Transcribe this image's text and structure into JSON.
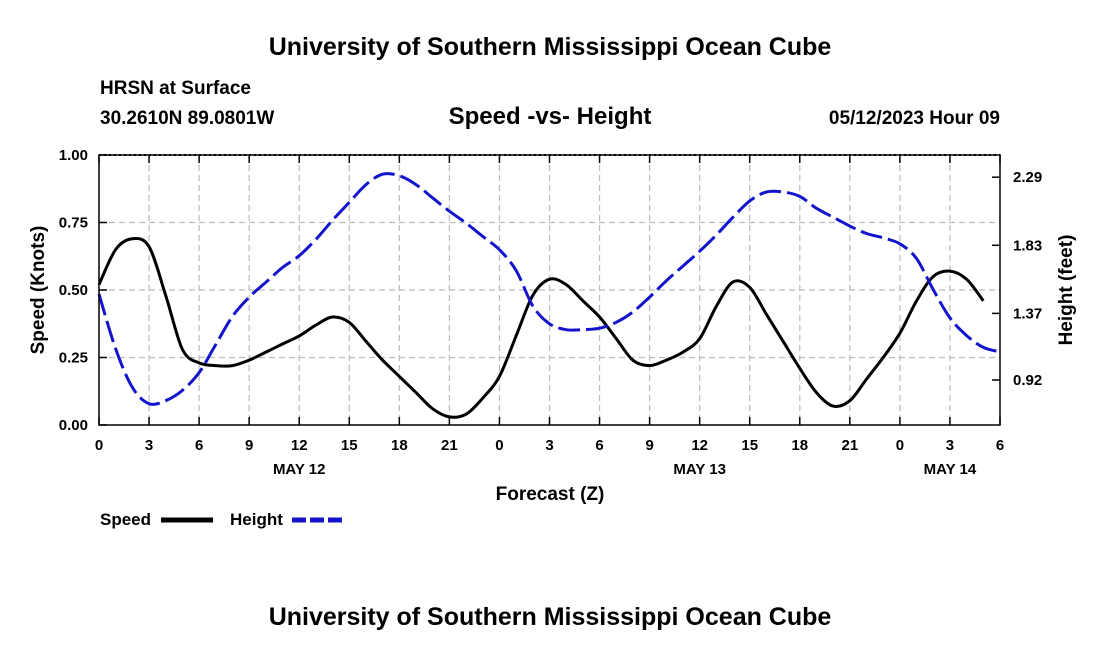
{
  "page": {
    "title_top": "University of Southern Mississippi Ocean Cube",
    "title_bottom": "University of Southern Mississippi Ocean Cube",
    "station": "HRSN at Surface",
    "coords": "30.2610N  89.0801W",
    "subtitle": "Speed -vs- Height",
    "date": "05/12/2023 Hour 09"
  },
  "chart_data": {
    "type": "line",
    "title": "Speed -vs- Height",
    "xlabel": "Forecast (Z)",
    "ylabel": "Speed (Knots)",
    "y2label": "Height (feet)",
    "x_range": [
      0,
      54
    ],
    "x_unit": "hours since 05/12 00Z",
    "ylim": [
      0,
      1
    ],
    "y2lim": [
      0.616,
      2.44
    ],
    "yticks": [
      0,
      0.25,
      0.5,
      0.75,
      1.0
    ],
    "ytick_labels": [
      "0.00",
      "0.25",
      "0.50",
      "0.75",
      "1.00"
    ],
    "y2ticks": [
      0.92,
      1.37,
      1.83,
      2.29
    ],
    "y2tick_labels": [
      "0.92",
      "1.37",
      "1.83",
      "2.29"
    ],
    "xticks": [
      0,
      3,
      6,
      9,
      12,
      15,
      18,
      21,
      24,
      27,
      30,
      33,
      36,
      39,
      42,
      45,
      48,
      51,
      54
    ],
    "xtick_labels": [
      "0",
      "3",
      "6",
      "9",
      "12",
      "15",
      "18",
      "21",
      "0",
      "3",
      "6",
      "9",
      "12",
      "15",
      "18",
      "21",
      "0",
      "3",
      "6"
    ],
    "date_labels": [
      {
        "x": 12,
        "label": "MAY 12"
      },
      {
        "x": 36,
        "label": "MAY 13"
      },
      {
        "x": 51,
        "label": "MAY 14"
      }
    ],
    "grid": true,
    "legend": "bottom-left",
    "series": [
      {
        "name": "Speed",
        "axis": "left",
        "color": "#000000",
        "style": "solid",
        "points": [
          [
            0,
            0.52
          ],
          [
            1,
            0.65
          ],
          [
            2,
            0.69
          ],
          [
            3,
            0.66
          ],
          [
            4,
            0.48
          ],
          [
            5,
            0.28
          ],
          [
            6,
            0.23
          ],
          [
            7,
            0.22
          ],
          [
            8,
            0.22
          ],
          [
            9,
            0.24
          ],
          [
            10,
            0.27
          ],
          [
            11,
            0.3
          ],
          [
            12,
            0.33
          ],
          [
            13,
            0.37
          ],
          [
            14,
            0.4
          ],
          [
            15,
            0.38
          ],
          [
            16,
            0.31
          ],
          [
            17,
            0.24
          ],
          [
            18,
            0.18
          ],
          [
            19,
            0.12
          ],
          [
            20,
            0.06
          ],
          [
            21,
            0.03
          ],
          [
            22,
            0.04
          ],
          [
            23,
            0.1
          ],
          [
            24,
            0.18
          ],
          [
            25,
            0.33
          ],
          [
            26,
            0.48
          ],
          [
            27,
            0.54
          ],
          [
            28,
            0.52
          ],
          [
            29,
            0.46
          ],
          [
            30,
            0.4
          ],
          [
            31,
            0.32
          ],
          [
            32,
            0.24
          ],
          [
            33,
            0.22
          ],
          [
            34,
            0.24
          ],
          [
            35,
            0.27
          ],
          [
            36,
            0.32
          ],
          [
            37,
            0.44
          ],
          [
            38,
            0.53
          ],
          [
            39,
            0.51
          ],
          [
            40,
            0.41
          ],
          [
            41,
            0.31
          ],
          [
            42,
            0.21
          ],
          [
            43,
            0.12
          ],
          [
            44,
            0.07
          ],
          [
            45,
            0.09
          ],
          [
            46,
            0.17
          ],
          [
            47,
            0.25
          ],
          [
            48,
            0.34
          ],
          [
            49,
            0.46
          ],
          [
            50,
            0.55
          ],
          [
            51,
            0.57
          ],
          [
            52,
            0.54
          ],
          [
            53,
            0.46
          ]
        ]
      },
      {
        "name": "Height",
        "axis": "right",
        "color": "#1414cc",
        "style": "dashed",
        "points": [
          [
            0,
            1.5
          ],
          [
            1,
            1.13
          ],
          [
            2,
            0.87
          ],
          [
            3,
            0.76
          ],
          [
            4,
            0.78
          ],
          [
            5,
            0.85
          ],
          [
            6,
            0.97
          ],
          [
            7,
            1.16
          ],
          [
            8,
            1.35
          ],
          [
            9,
            1.48
          ],
          [
            10,
            1.58
          ],
          [
            11,
            1.68
          ],
          [
            12,
            1.76
          ],
          [
            13,
            1.87
          ],
          [
            14,
            2.0
          ],
          [
            15,
            2.12
          ],
          [
            16,
            2.24
          ],
          [
            17,
            2.31
          ],
          [
            18,
            2.3
          ],
          [
            19,
            2.24
          ],
          [
            20,
            2.15
          ],
          [
            21,
            2.06
          ],
          [
            22,
            1.98
          ],
          [
            23,
            1.89
          ],
          [
            24,
            1.8
          ],
          [
            25,
            1.66
          ],
          [
            26,
            1.42
          ],
          [
            27,
            1.3
          ],
          [
            28,
            1.26
          ],
          [
            29,
            1.26
          ],
          [
            30,
            1.27
          ],
          [
            31,
            1.31
          ],
          [
            32,
            1.38
          ],
          [
            33,
            1.48
          ],
          [
            34,
            1.59
          ],
          [
            35,
            1.69
          ],
          [
            36,
            1.79
          ],
          [
            37,
            1.9
          ],
          [
            38,
            2.02
          ],
          [
            39,
            2.13
          ],
          [
            40,
            2.19
          ],
          [
            41,
            2.19
          ],
          [
            42,
            2.16
          ],
          [
            43,
            2.08
          ],
          [
            44,
            2.02
          ],
          [
            45,
            1.96
          ],
          [
            46,
            1.91
          ],
          [
            47,
            1.88
          ],
          [
            48,
            1.84
          ],
          [
            49,
            1.74
          ],
          [
            50,
            1.53
          ],
          [
            51,
            1.34
          ],
          [
            52,
            1.22
          ],
          [
            53,
            1.14
          ],
          [
            54,
            1.11
          ]
        ]
      }
    ]
  }
}
